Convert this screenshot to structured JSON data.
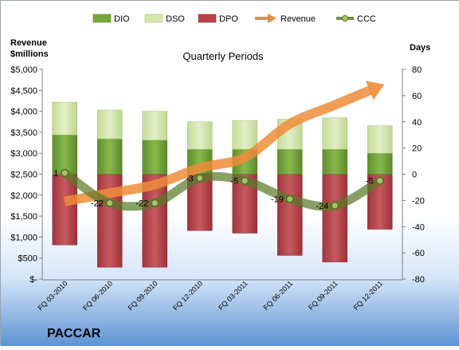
{
  "chart_data": {
    "type": "combo",
    "subtitle": "Quarterly Periods",
    "company": "PACCAR",
    "left_axis": {
      "label_lines": [
        "Revenue",
        "$millions"
      ],
      "range": [
        0,
        5000
      ],
      "ticks": [
        0,
        500,
        1000,
        1500,
        2000,
        2500,
        3000,
        3500,
        4000,
        4500,
        5000
      ],
      "tick_labels": [
        "$-",
        "$500",
        "$1,000",
        "$1,500",
        "$2,000",
        "$2,500",
        "$3,000",
        "$3,500",
        "$4,000",
        "$4,500",
        "$5,000"
      ]
    },
    "right_axis": {
      "label": "Days",
      "range": [
        -80,
        80
      ],
      "ticks": [
        -80,
        -60,
        -40,
        -20,
        0,
        20,
        40,
        60,
        80
      ],
      "tick_labels": [
        "-80",
        "-60",
        "-40",
        "-20",
        "0",
        "20",
        "40",
        "60",
        "80"
      ]
    },
    "categories": [
      "FQ 03-2010",
      "FQ 06-2010",
      "FQ 09-2010",
      "FQ 12-2010",
      "FQ 03-2011",
      "FQ 06-2011",
      "FQ 09-2011",
      "FQ 12-2011"
    ],
    "legend": {
      "position": "top",
      "entries": [
        {
          "label": "DIO",
          "kind": "bar",
          "color": "#77a83c"
        },
        {
          "label": "DSO",
          "kind": "bar",
          "color": "#d4e8ad"
        },
        {
          "label": "DPO",
          "kind": "bar",
          "color": "#b8434a"
        },
        {
          "label": "Revenue",
          "kind": "arrow",
          "color": "#f08c3a"
        },
        {
          "label": "CCC",
          "kind": "line",
          "color": "#5a7a2a"
        }
      ]
    },
    "series": [
      {
        "name": "DPO",
        "axis": "right",
        "kind": "bar-below-zero",
        "color": "#b8434a",
        "values": [
          54,
          71,
          71,
          43,
          45,
          62,
          67,
          42
        ]
      },
      {
        "name": "DIO",
        "axis": "right",
        "kind": "bar-stacked-above-zero",
        "color": "#77a83c",
        "values": [
          30,
          27,
          26,
          19,
          19,
          19,
          19,
          16
        ]
      },
      {
        "name": "DSO",
        "axis": "right",
        "kind": "bar-stacked-above-zero",
        "color": "#d4e8ad",
        "values": [
          25,
          22,
          22,
          21,
          22,
          23,
          24,
          21
        ]
      },
      {
        "name": "Revenue",
        "axis": "left",
        "kind": "trend-arrow",
        "color": "#f08c3a",
        "values": [
          1850,
          2050,
          2250,
          2650,
          2900,
          3700,
          4150,
          4600
        ]
      },
      {
        "name": "CCC",
        "axis": "right",
        "kind": "line",
        "color": "#5a7a2a",
        "values": [
          1,
          -22,
          -22,
          -3,
          -5,
          -19,
          -24,
          -5
        ],
        "data_labels": [
          "1",
          "-22",
          "-22",
          "-3",
          "-5",
          "-19",
          "-24",
          "-5"
        ]
      }
    ],
    "grid": false
  }
}
